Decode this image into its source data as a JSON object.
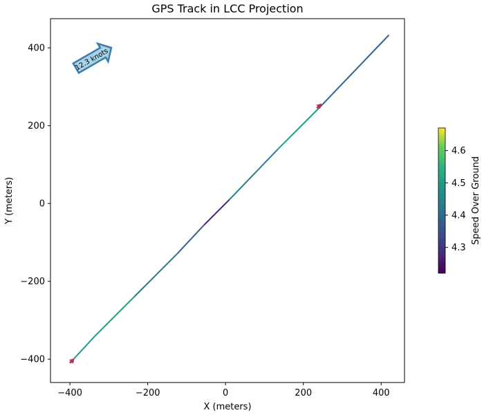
{
  "chart_data": {
    "type": "line",
    "title": "GPS Track in LCC Projection",
    "xlabel": "X (meters)",
    "ylabel": "Y (meters)",
    "xlim": [
      -450,
      460
    ],
    "ylim": [
      -460,
      475
    ],
    "xticks": [
      -400,
      -200,
      0,
      200,
      400
    ],
    "yticks": [
      -400,
      -200,
      0,
      200,
      400
    ],
    "xtick_labels": [
      "−400",
      "−200",
      "0",
      "200",
      "400"
    ],
    "ytick_labels": [
      "−400",
      "−200",
      "0",
      "200",
      "400"
    ],
    "grid": false,
    "series": [
      {
        "x": [
          -400,
          -335,
          -235,
          -125,
          -55,
          10,
          135,
          240,
          420
        ],
        "y": [
          -410,
          -340,
          -240,
          -130,
          -55,
          10,
          140,
          245,
          433
        ],
        "speed": [
          4.37,
          4.62,
          4.4,
          4.45,
          4.3,
          4.24,
          4.62,
          4.38,
          4.38
        ]
      }
    ],
    "direction_arrows": [
      {
        "x": -400,
        "y": -410,
        "dx": 12,
        "dy": 12,
        "color": "#b5344b"
      },
      {
        "x": 235,
        "y": 245,
        "dx": 12,
        "dy": 12,
        "color": "#b5344b"
      }
    ],
    "colorbar": {
      "label": "Speed Over Ground",
      "min": 4.22,
      "max": 4.67,
      "ticks": [
        4.3,
        4.4,
        4.5,
        4.6
      ],
      "tick_labels": [
        "4.3",
        "4.4",
        "4.5",
        "4.6"
      ],
      "colormap": "viridis"
    },
    "annotation": {
      "text": "12.3 knots",
      "angle_deg": 30,
      "fill": "#a7d3ea",
      "stroke": "#3d7bab",
      "placement": "top-left"
    }
  }
}
